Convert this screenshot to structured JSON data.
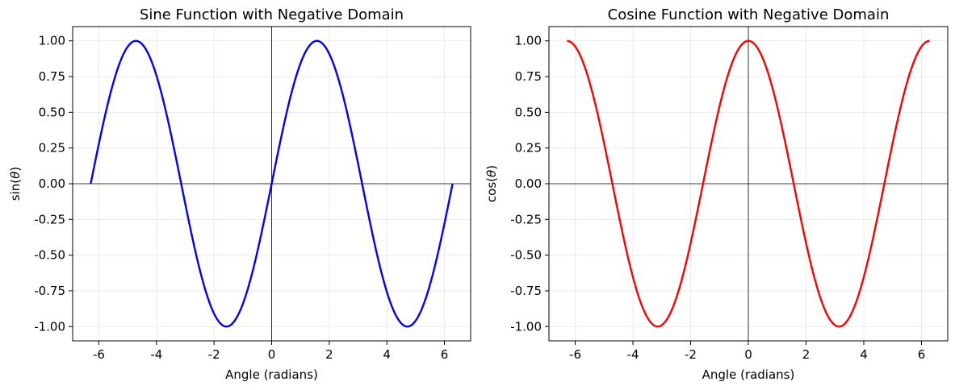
{
  "chart_data": [
    {
      "type": "line",
      "title": "Sine Function with Negative Domain",
      "xlabel": "Angle (radians)",
      "ylabel_prefix": "sin(",
      "ylabel_symbol": "θ",
      "ylabel_suffix": ")",
      "xlim": [
        -6.91,
        6.91
      ],
      "ylim": [
        -1.1,
        1.1
      ],
      "xticks": [
        -6,
        -4,
        -2,
        0,
        2,
        4,
        6
      ],
      "xtick_labels": [
        "-6",
        "-4",
        "-2",
        "0",
        "2",
        "4",
        "6"
      ],
      "yticks": [
        -1.0,
        -0.75,
        -0.5,
        -0.25,
        0.0,
        0.25,
        0.5,
        0.75,
        1.0
      ],
      "ytick_labels": [
        "-1.00",
        "-0.75",
        "-0.50",
        "-0.25",
        "0.00",
        "0.25",
        "0.50",
        "0.75",
        "1.00"
      ],
      "grid": true,
      "reference_lines": {
        "x": 0,
        "y": 0,
        "color": "#000000"
      },
      "series": [
        {
          "color": "#0000ff",
          "function": "sin",
          "x_range": [
            -6.2832,
            6.2832
          ],
          "x": [
            -6.2832,
            -5.4978,
            -4.7124,
            -3.927,
            -3.1416,
            -2.3562,
            -1.5708,
            -0.7854,
            0,
            0.7854,
            1.5708,
            2.3562,
            3.1416,
            3.927,
            4.7124,
            5.4978,
            6.2832
          ],
          "y": [
            0.0,
            0.707,
            1.0,
            0.707,
            0.0,
            -0.707,
            -1.0,
            -0.707,
            0.0,
            0.707,
            1.0,
            0.707,
            0.0,
            -0.707,
            -1.0,
            -0.707,
            0.0
          ]
        }
      ]
    },
    {
      "type": "line",
      "title": "Cosine Function with Negative Domain",
      "xlabel": "Angle (radians)",
      "ylabel_prefix": "cos(",
      "ylabel_symbol": "θ",
      "ylabel_suffix": ")",
      "xlim": [
        -6.91,
        6.91
      ],
      "ylim": [
        -1.1,
        1.1
      ],
      "xticks": [
        -6,
        -4,
        -2,
        0,
        2,
        4,
        6
      ],
      "xtick_labels": [
        "-6",
        "-4",
        "-2",
        "0",
        "2",
        "4",
        "6"
      ],
      "yticks": [
        -1.0,
        -0.75,
        -0.5,
        -0.25,
        0.0,
        0.25,
        0.5,
        0.75,
        1.0
      ],
      "ytick_labels": [
        "-1.00",
        "-0.75",
        "-0.50",
        "-0.25",
        "0.00",
        "0.25",
        "0.50",
        "0.75",
        "1.00"
      ],
      "grid": true,
      "reference_lines": {
        "x": 0,
        "y": 0,
        "color": "#000000"
      },
      "series": [
        {
          "color": "#ff0000",
          "function": "cos",
          "x_range": [
            -6.2832,
            6.2832
          ],
          "x": [
            -6.2832,
            -5.4978,
            -4.7124,
            -3.927,
            -3.1416,
            -2.3562,
            -1.5708,
            -0.7854,
            0,
            0.7854,
            1.5708,
            2.3562,
            3.1416,
            3.927,
            4.7124,
            5.4978,
            6.2832
          ],
          "y": [
            1.0,
            0.707,
            0.0,
            -0.707,
            -1.0,
            -0.707,
            0.0,
            0.707,
            1.0,
            0.707,
            0.0,
            -0.707,
            -1.0,
            -0.707,
            0.0,
            0.707,
            1.0
          ]
        }
      ]
    }
  ]
}
